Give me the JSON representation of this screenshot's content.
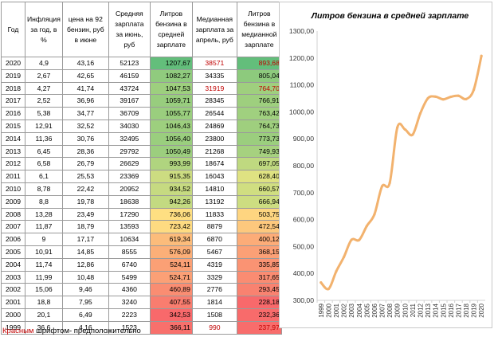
{
  "table": {
    "headers": [
      "Год",
      "Инфляция за год, в %",
      "цена на 92 бензин, руб в июне",
      "Средняя зарплата за июнь, руб",
      "Литров бензина в средней зарплате",
      "Медианная зарплата за апрель, руб",
      "Литров бензина в медианной зарплате"
    ],
    "rows": [
      {
        "year": "2020",
        "infl": "4,9",
        "price": "43,16",
        "salary": "52123",
        "liters": "1207,67",
        "median": "38571",
        "mliters": "893,68",
        "red_median": true,
        "red_mliters": true
      },
      {
        "year": "2019",
        "infl": "2,67",
        "price": "42,65",
        "salary": "46159",
        "liters": "1082,27",
        "median": "34335",
        "mliters": "805,04",
        "red_median": false,
        "red_mliters": false
      },
      {
        "year": "2018",
        "infl": "4,27",
        "price": "41,74",
        "salary": "43724",
        "liters": "1047,53",
        "median": "31919",
        "mliters": "764,70",
        "red_median": true,
        "red_mliters": true
      },
      {
        "year": "2017",
        "infl": "2,52",
        "price": "36,96",
        "salary": "39167",
        "liters": "1059,71",
        "median": "28345",
        "mliters": "766,91",
        "red_median": false,
        "red_mliters": false
      },
      {
        "year": "2016",
        "infl": "5,38",
        "price": "34,77",
        "salary": "36709",
        "liters": "1055,77",
        "median": "26544",
        "mliters": "763,42",
        "red_median": false,
        "red_mliters": false
      },
      {
        "year": "2015",
        "infl": "12,91",
        "price": "32,52",
        "salary": "34030",
        "liters": "1046,43",
        "median": "24869",
        "mliters": "764,73",
        "red_median": false,
        "red_mliters": false
      },
      {
        "year": "2014",
        "infl": "11,36",
        "price": "30,76",
        "salary": "32495",
        "liters": "1056,40",
        "median": "23800",
        "mliters": "773,73",
        "red_median": false,
        "red_mliters": false
      },
      {
        "year": "2013",
        "infl": "6,45",
        "price": "28,36",
        "salary": "29792",
        "liters": "1050,49",
        "median": "21268",
        "mliters": "749,93",
        "red_median": false,
        "red_mliters": false
      },
      {
        "year": "2012",
        "infl": "6,58",
        "price": "26,79",
        "salary": "26629",
        "liters": "993,99",
        "median": "18674",
        "mliters": "697,05",
        "red_median": false,
        "red_mliters": false
      },
      {
        "year": "2011",
        "infl": "6,1",
        "price": "25,53",
        "salary": "23369",
        "liters": "915,35",
        "median": "16043",
        "mliters": "628,40",
        "red_median": false,
        "red_mliters": false
      },
      {
        "year": "2010",
        "infl": "8,78",
        "price": "22,42",
        "salary": "20952",
        "liters": "934,52",
        "median": "14810",
        "mliters": "660,57",
        "red_median": false,
        "red_mliters": false
      },
      {
        "year": "2009",
        "infl": "8,8",
        "price": "19,78",
        "salary": "18638",
        "liters": "942,26",
        "median": "13192",
        "mliters": "666,94",
        "red_median": false,
        "red_mliters": false
      },
      {
        "year": "2008",
        "infl": "13,28",
        "price": "23,49",
        "salary": "17290",
        "liters": "736,06",
        "median": "11833",
        "mliters": "503,75",
        "red_median": false,
        "red_mliters": false
      },
      {
        "year": "2007",
        "infl": "11,87",
        "price": "18,79",
        "salary": "13593",
        "liters": "723,42",
        "median": "8879",
        "mliters": "472,54",
        "red_median": false,
        "red_mliters": false
      },
      {
        "year": "2006",
        "infl": "9",
        "price": "17,17",
        "salary": "10634",
        "liters": "619,34",
        "median": "6870",
        "mliters": "400,12",
        "red_median": false,
        "red_mliters": false
      },
      {
        "year": "2005",
        "infl": "10,91",
        "price": "14,85",
        "salary": "8555",
        "liters": "576,09",
        "median": "5467",
        "mliters": "368,15",
        "red_median": false,
        "red_mliters": false
      },
      {
        "year": "2004",
        "infl": "11,74",
        "price": "12,86",
        "salary": "6740",
        "liters": "524,11",
        "median": "4319",
        "mliters": "335,85",
        "red_median": false,
        "red_mliters": false
      },
      {
        "year": "2003",
        "infl": "11,99",
        "price": "10,48",
        "salary": "5499",
        "liters": "524,71",
        "median": "3329",
        "mliters": "317,65",
        "red_median": false,
        "red_mliters": false
      },
      {
        "year": "2002",
        "infl": "15,06",
        "price": "9,46",
        "salary": "4360",
        "liters": "460,89",
        "median": "2776",
        "mliters": "293,45",
        "red_median": false,
        "red_mliters": false
      },
      {
        "year": "2001",
        "infl": "18,8",
        "price": "7,95",
        "salary": "3240",
        "liters": "407,55",
        "median": "1814",
        "mliters": "228,18",
        "red_median": false,
        "red_mliters": false
      },
      {
        "year": "2000",
        "infl": "20,1",
        "price": "6,49",
        "salary": "2223",
        "liters": "342,53",
        "median": "1508",
        "mliters": "232,36",
        "red_median": false,
        "red_mliters": false
      },
      {
        "year": "1999",
        "infl": "36,6",
        "price": "4,16",
        "salary": "1523",
        "liters": "366,11",
        "median": "990",
        "mliters": "237,97",
        "red_median": true,
        "red_mliters": true
      }
    ]
  },
  "note": {
    "red_word": "Красным",
    "rest": " шрифтом- предположительно"
  },
  "colors": {
    "accent_red": "#c00000",
    "line": "#f2b26e",
    "heat_low": "#f8696b",
    "heat_mid": "#ffeb84",
    "heat_high": "#63be7b"
  },
  "chart_data": {
    "type": "line",
    "title": "Литров бензина в средней зарплате",
    "x": [
      "1999",
      "2000",
      "2001",
      "2002",
      "2003",
      "2004",
      "2005",
      "2006",
      "2007",
      "2008",
      "2009",
      "2010",
      "2011",
      "2012",
      "2013",
      "2014",
      "2015",
      "2016",
      "2017",
      "2018",
      "2019",
      "2020"
    ],
    "series": [
      {
        "values": [
          366.11,
          342.53,
          407.55,
          460.89,
          524.71,
          524.11,
          576.09,
          619.34,
          723.42,
          736.06,
          942.26,
          934.52,
          915.35,
          993.99,
          1050.49,
          1056.4,
          1046.43,
          1055.77,
          1059.71,
          1047.53,
          1082.27,
          1207.67
        ]
      }
    ],
    "yticks": [
      "300,00",
      "400,00",
      "500,00",
      "600,00",
      "700,00",
      "800,00",
      "900,00",
      "1000,00",
      "1100,00",
      "1200,00",
      "1300,00"
    ],
    "ylim": [
      300,
      1300
    ],
    "grid": false,
    "legend": "none"
  }
}
